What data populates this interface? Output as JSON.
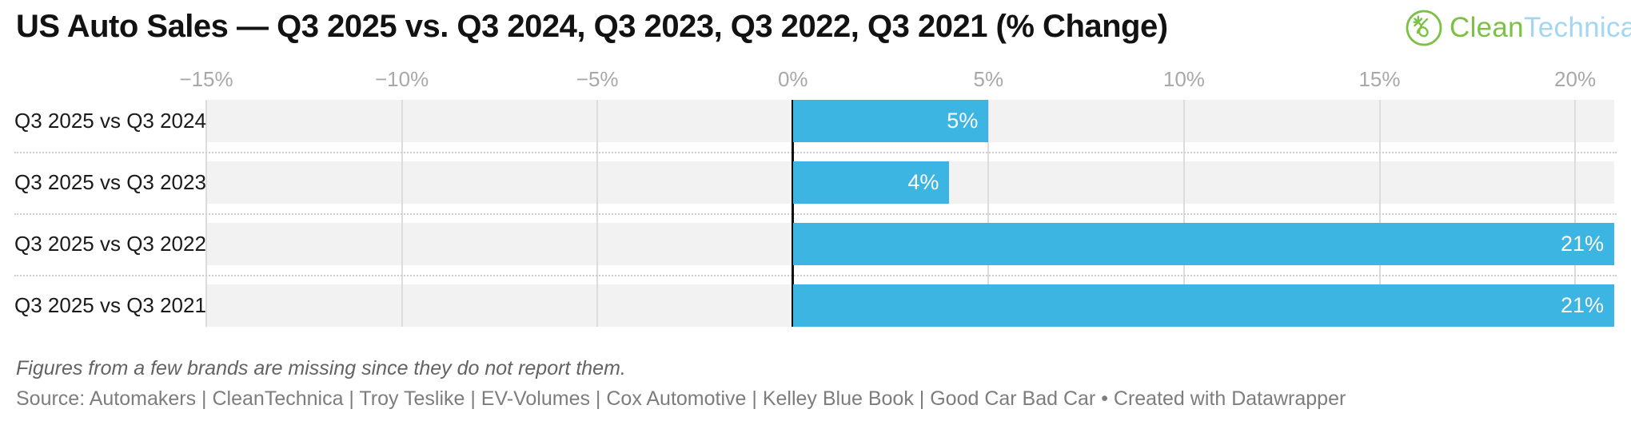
{
  "header": {
    "title": "US Auto Sales — Q3 2025 vs. Q3 2024, Q3 2023, Q3 2022, Q3 2021 (% Change)",
    "logo": {
      "icon": "cleantechnica-circle-icon",
      "text_green": "Clean",
      "text_blue": "Technica",
      "green_color": "#7bc143",
      "blue_color": "#a3d6f2"
    }
  },
  "chart_data": {
    "type": "bar",
    "orientation": "horizontal",
    "title": "US Auto Sales — Q3 2025 vs. Q3 2024, Q3 2023, Q3 2022, Q3 2021 (% Change)",
    "categories": [
      "Q3 2025 vs Q3 2024",
      "Q3 2025 vs Q3 2023",
      "Q3 2025 vs Q3 2022",
      "Q3 2025 vs Q3 2021"
    ],
    "values": [
      5,
      4,
      21,
      21
    ],
    "value_labels": [
      "5%",
      "4%",
      "21%",
      "21%"
    ],
    "unit": "%",
    "xlim": [
      -15,
      21
    ],
    "x_ticks": [
      {
        "value": -15,
        "label": "−15%"
      },
      {
        "value": -10,
        "label": "−10%"
      },
      {
        "value": -5,
        "label": "−5%"
      },
      {
        "value": 0,
        "label": "0%"
      },
      {
        "value": 5,
        "label": "5%"
      },
      {
        "value": 10,
        "label": "10%"
      },
      {
        "value": 15,
        "label": "15%"
      },
      {
        "value": 20,
        "label": "20%"
      }
    ],
    "bar_color": "#3db5e2",
    "band_color": "#f2f2f2",
    "gridline_color": "#dcdcdc",
    "zero_line_color": "#111111",
    "grid": true,
    "legend": "none",
    "value_labels_position": "inside-end"
  },
  "footer": {
    "note": "Figures from a few brands are missing since they do not report them.",
    "source": "Source: Automakers | CleanTechnica | Troy Teslike | EV-Volumes | Cox Automotive | Kelley Blue Book | Good Car Bad Car • Created with Datawrapper"
  }
}
